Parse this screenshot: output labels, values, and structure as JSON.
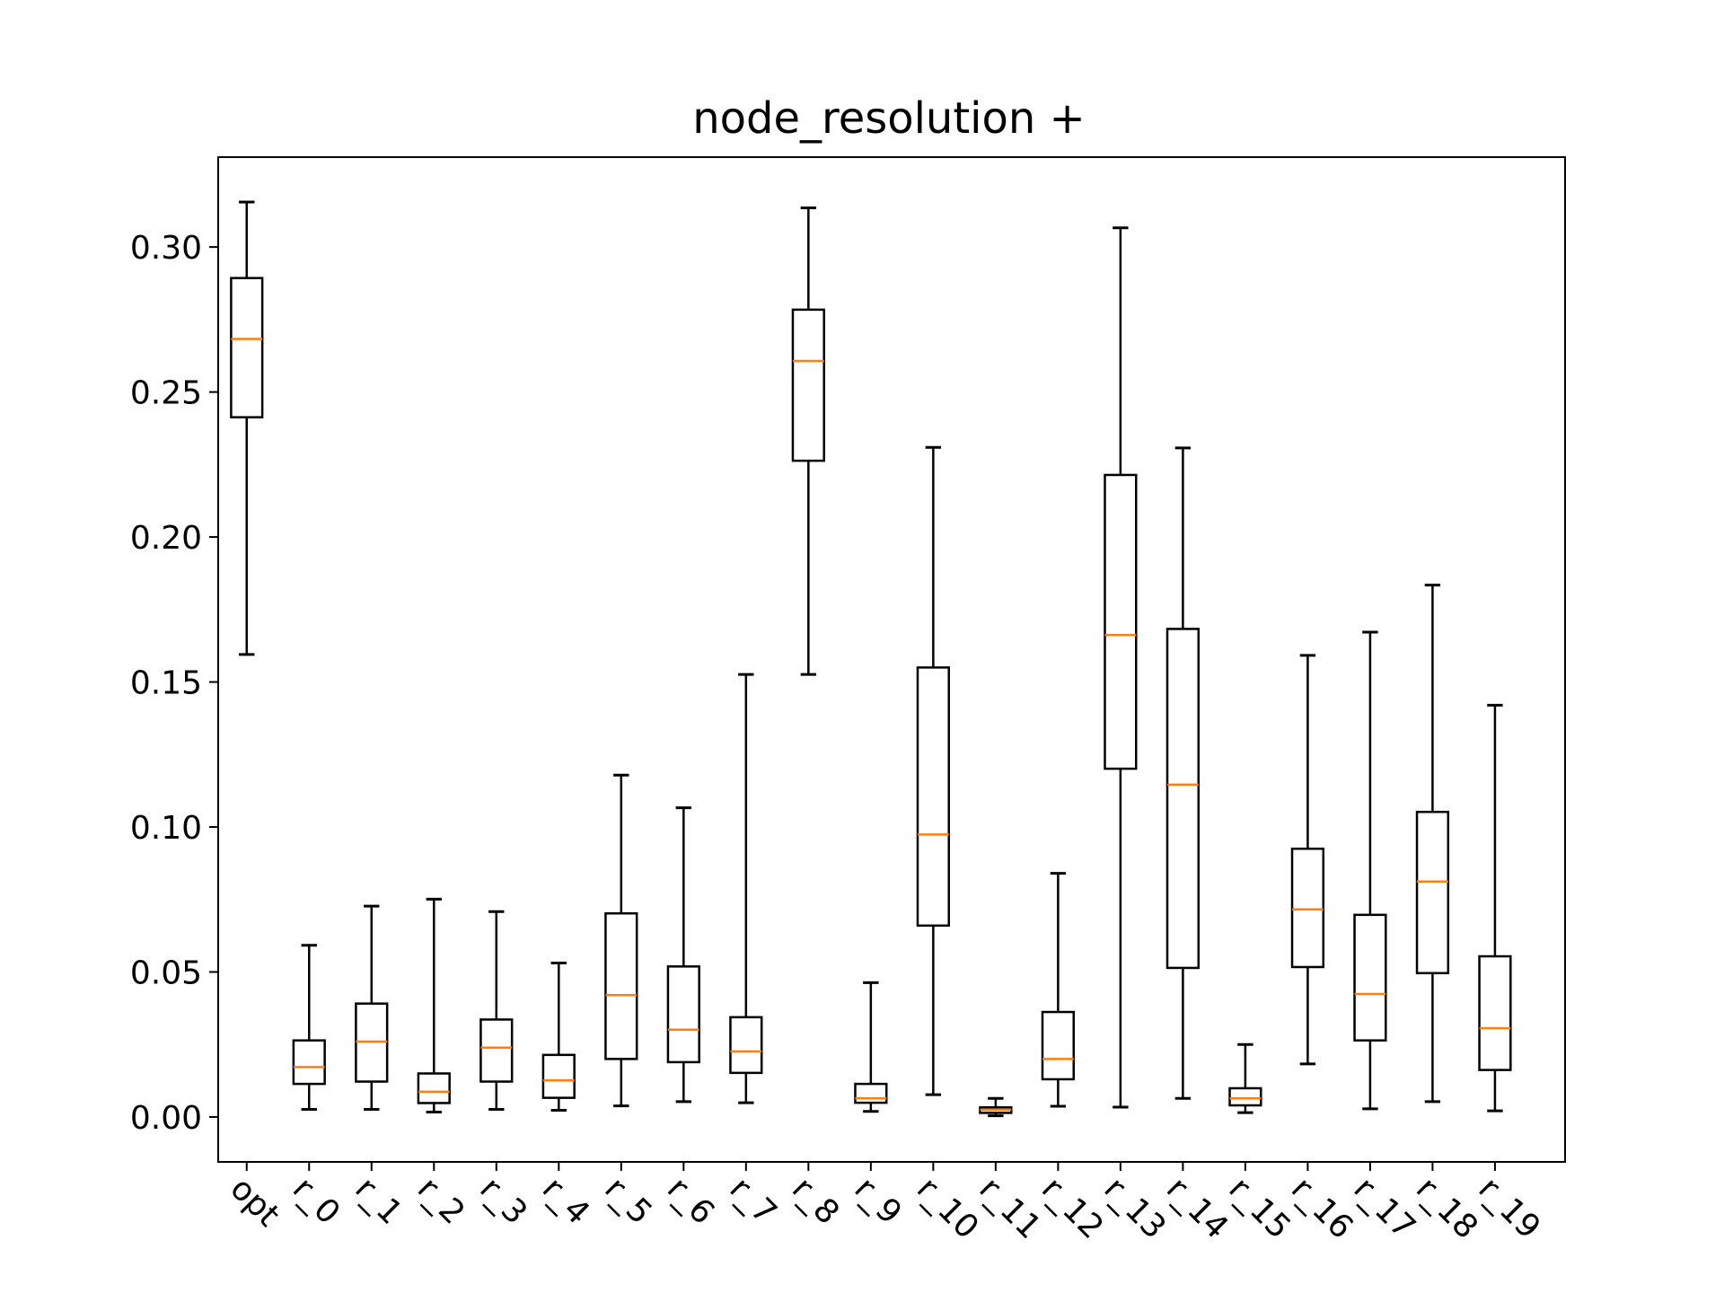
{
  "chart_data": {
    "type": "box",
    "title": "node_resolution +",
    "xlabel": "",
    "ylabel": "",
    "ylim": [
      -0.0155,
      0.331
    ],
    "yticks": [
      "0.00",
      "0.05",
      "0.10",
      "0.15",
      "0.20",
      "0.25",
      "0.30"
    ],
    "categories": [
      "opt",
      "r_0",
      "r_1",
      "r_2",
      "r_3",
      "r_4",
      "r_5",
      "r_6",
      "r_7",
      "r_8",
      "r_9",
      "r_10",
      "r_11",
      "r_12",
      "r_13",
      "r_14",
      "r_15",
      "r_16",
      "r_17",
      "r_18",
      "r_19"
    ],
    "boxes": [
      {
        "label": "opt",
        "whislo": 0.1595,
        "q1": 0.2413,
        "med": 0.2683,
        "q3": 0.2893,
        "whishi": 0.3155
      },
      {
        "label": "r_0",
        "whislo": 0.0026,
        "q1": 0.0114,
        "med": 0.0172,
        "q3": 0.0264,
        "whishi": 0.0592
      },
      {
        "label": "r_1",
        "whislo": 0.0026,
        "q1": 0.0122,
        "med": 0.026,
        "q3": 0.0391,
        "whishi": 0.0727
      },
      {
        "label": "r_2",
        "whislo": 0.0017,
        "q1": 0.0048,
        "med": 0.0087,
        "q3": 0.015,
        "whishi": 0.0751
      },
      {
        "label": "r_3",
        "whislo": 0.0026,
        "q1": 0.0122,
        "med": 0.0239,
        "q3": 0.0336,
        "whishi": 0.0708
      },
      {
        "label": "r_4",
        "whislo": 0.0023,
        "q1": 0.0066,
        "med": 0.0126,
        "q3": 0.0214,
        "whishi": 0.0531
      },
      {
        "label": "r_5",
        "whislo": 0.0038,
        "q1": 0.02,
        "med": 0.042,
        "q3": 0.0702,
        "whishi": 0.1179
      },
      {
        "label": "r_6",
        "whislo": 0.0053,
        "q1": 0.0189,
        "med": 0.0301,
        "q3": 0.0519,
        "whishi": 0.1066
      },
      {
        "label": "r_7",
        "whislo": 0.0049,
        "q1": 0.0152,
        "med": 0.0226,
        "q3": 0.0344,
        "whishi": 0.1526
      },
      {
        "label": "r_8",
        "whislo": 0.1526,
        "q1": 0.2263,
        "med": 0.2607,
        "q3": 0.2784,
        "whishi": 0.3135
      },
      {
        "label": "r_9",
        "whislo": 0.0019,
        "q1": 0.0049,
        "med": 0.0064,
        "q3": 0.0114,
        "whishi": 0.0463
      },
      {
        "label": "r_10",
        "whislo": 0.0077,
        "q1": 0.066,
        "med": 0.0974,
        "q3": 0.155,
        "whishi": 0.2309
      },
      {
        "label": "r_11",
        "whislo": 0.0004,
        "q1": 0.0014,
        "med": 0.0025,
        "q3": 0.0033,
        "whishi": 0.0064
      },
      {
        "label": "r_12",
        "whislo": 0.0037,
        "q1": 0.013,
        "med": 0.02,
        "q3": 0.0362,
        "whishi": 0.084
      },
      {
        "label": "r_13",
        "whislo": 0.0034,
        "q1": 0.1201,
        "med": 0.1662,
        "q3": 0.2214,
        "whishi": 0.3066
      },
      {
        "label": "r_14",
        "whislo": 0.0064,
        "q1": 0.0514,
        "med": 0.1146,
        "q3": 0.1683,
        "whishi": 0.2307
      },
      {
        "label": "r_15",
        "whislo": 0.0015,
        "q1": 0.004,
        "med": 0.0064,
        "q3": 0.0099,
        "whishi": 0.025
      },
      {
        "label": "r_16",
        "whislo": 0.0183,
        "q1": 0.0517,
        "med": 0.0716,
        "q3": 0.0925,
        "whishi": 0.1592
      },
      {
        "label": "r_17",
        "whislo": 0.0028,
        "q1": 0.0264,
        "med": 0.0424,
        "q3": 0.0697,
        "whishi": 0.1672
      },
      {
        "label": "r_18",
        "whislo": 0.0053,
        "q1": 0.0496,
        "med": 0.0812,
        "q3": 0.1052,
        "whishi": 0.1834
      },
      {
        "label": "r_19",
        "whislo": 0.0021,
        "q1": 0.0162,
        "med": 0.0306,
        "q3": 0.0554,
        "whishi": 0.142
      }
    ],
    "grid": false,
    "legend": "none",
    "colors": {
      "box": "#000000",
      "median": "#ff7f0e",
      "whisker": "#000000"
    }
  }
}
